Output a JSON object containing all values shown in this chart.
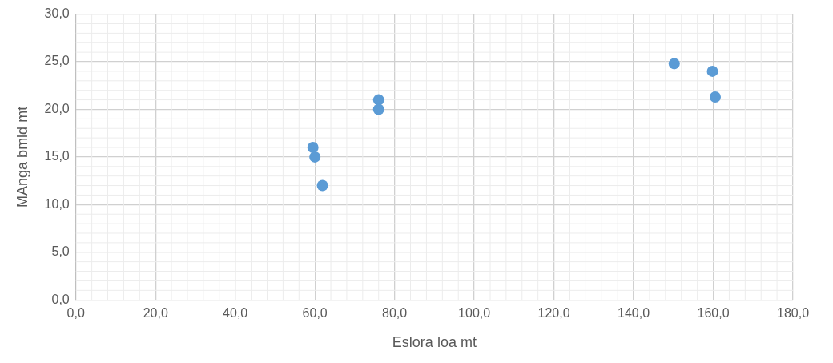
{
  "chart_data": {
    "type": "scatter",
    "xlabel": "Eslora loa mt",
    "ylabel": "MAnga bmld mt",
    "x": [
      59.5,
      60,
      61.9,
      76,
      76,
      150.2,
      159.8,
      160.5
    ],
    "series": [
      {
        "color": "#5b9bd5",
        "values": [
          16,
          15,
          12,
          21,
          20,
          24.8,
          24,
          21.3
        ]
      }
    ],
    "xlim": [
      0,
      180
    ],
    "ylim": [
      0,
      30
    ],
    "xticks": [
      {
        "value": 0,
        "label": "0,0"
      },
      {
        "value": 20,
        "label": "20,0"
      },
      {
        "value": 40,
        "label": "40,0"
      },
      {
        "value": 60,
        "label": "60,0"
      },
      {
        "value": 80,
        "label": "80,0"
      },
      {
        "value": 100,
        "label": "100,0"
      },
      {
        "value": 120,
        "label": "120,0"
      },
      {
        "value": 140,
        "label": "140,0"
      },
      {
        "value": 160,
        "label": "160,0"
      },
      {
        "value": 180,
        "label": "180,0"
      }
    ],
    "yticks": [
      {
        "value": 0,
        "label": "0,0"
      },
      {
        "value": 5,
        "label": "5,0"
      },
      {
        "value": 10,
        "label": "10,0"
      },
      {
        "value": 15,
        "label": "15,0"
      },
      {
        "value": 20,
        "label": "20,0"
      },
      {
        "value": 25,
        "label": "25,0"
      },
      {
        "value": 30,
        "label": "30,0"
      }
    ],
    "grid": true,
    "legend": false,
    "marker": "circle"
  }
}
